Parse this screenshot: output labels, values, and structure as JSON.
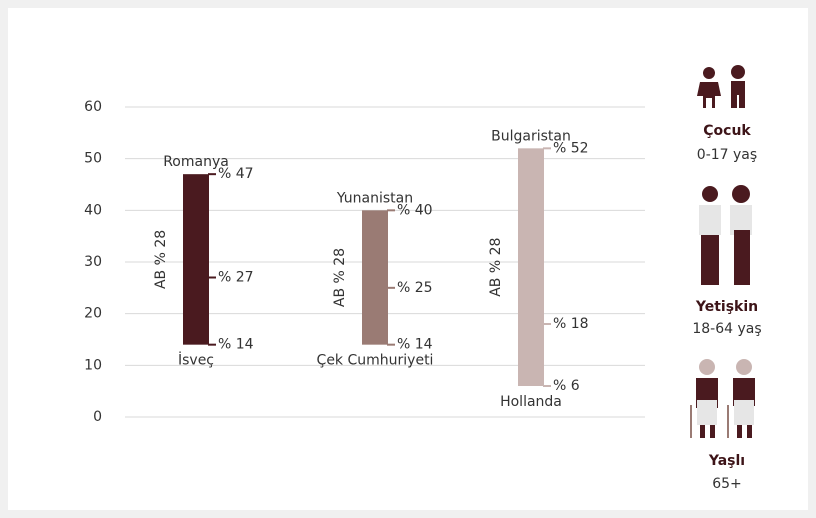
{
  "chart_data": {
    "type": "range",
    "ylim": [
      0,
      60
    ],
    "yticks": [
      0,
      10,
      20,
      30,
      40,
      50,
      60
    ],
    "grid": true,
    "series": [
      {
        "name": "Çocuk",
        "group": "0-17 yaş",
        "color": "#4a1a1f",
        "low": 14,
        "mid": 27,
        "high": 47,
        "value_labels": {
          "low": "% 14",
          "mid": "% 27",
          "high": "% 47"
        },
        "low_country": "İsveç",
        "high_country": "Romanya",
        "note": "AB % 28"
      },
      {
        "name": "Yetişkin",
        "group": "18-64 yaş",
        "color": "#9a7b74",
        "low": 14,
        "mid": 25,
        "high": 40,
        "value_labels": {
          "low": "% 14",
          "mid": "% 25",
          "high": "% 40"
        },
        "low_country": "Çek Cumhuriyeti",
        "high_country": "Yunanistan",
        "note": "AB % 28"
      },
      {
        "name": "Yaşlı",
        "group": "65+",
        "color": "#c9b5b2",
        "low": 6,
        "mid": 18,
        "high": 52,
        "value_labels": {
          "low": "% 6",
          "mid": "% 18",
          "high": "% 52"
        },
        "low_country": "Hollanda",
        "high_country": "Bulgaristan",
        "note": "AB % 28"
      }
    ]
  }
}
